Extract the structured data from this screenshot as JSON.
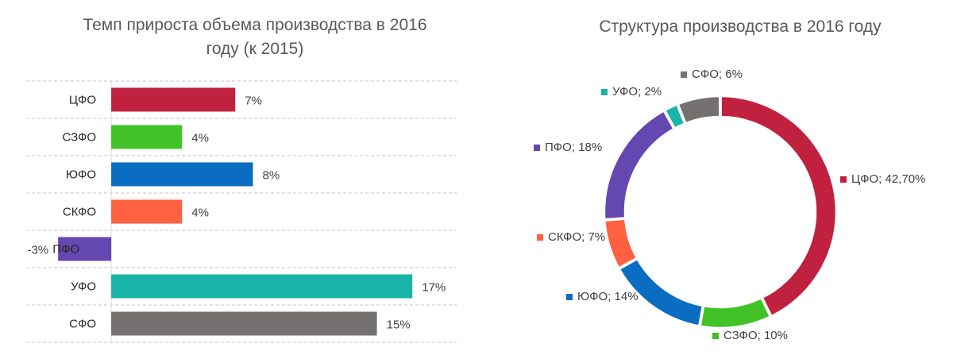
{
  "charts": {
    "bar": {
      "title_line1": "Темп прироста объема производства в 2016",
      "title_line2": "году (к 2015)"
    },
    "donut": {
      "title": "Структура производства в 2016 году"
    }
  },
  "chart_data": [
    {
      "type": "bar",
      "orientation": "horizontal",
      "title": "Темп прироста объема производства в 2016 году (к 2015)",
      "categories": [
        "ЦФО",
        "СЗФО",
        "ЮФО",
        "СКФО",
        "ПФО",
        "УФО",
        "СФО"
      ],
      "values": [
        7,
        4,
        8,
        4,
        -3,
        17,
        15
      ],
      "value_labels": [
        "7%",
        "4%",
        "8%",
        "4%",
        "-3%",
        "17%",
        "15%"
      ],
      "colors": [
        "#C0213F",
        "#41C227",
        "#0A6DC1",
        "#FF6040",
        "#6447B0",
        "#1AB3A8",
        "#757171"
      ],
      "xlim": [
        -4.8,
        19.5
      ],
      "grid": "dashed"
    },
    {
      "type": "pie",
      "donut": true,
      "title": "Структура производства в 2016 году",
      "slices": [
        {
          "label": "ЦФО; 42,70%",
          "value": 42.7,
          "color": "#C0213F"
        },
        {
          "label": "СЗФО; 10%",
          "value": 10,
          "color": "#41C227"
        },
        {
          "label": "ЮФО; 14%",
          "value": 14,
          "color": "#0A6DC1"
        },
        {
          "label": "СКФО; 7%",
          "value": 7,
          "color": "#FF6040"
        },
        {
          "label": "ПФО; 18%",
          "value": 18,
          "color": "#6447B0"
        },
        {
          "label": "УФО; 2%",
          "value": 2,
          "color": "#1AB3A8"
        },
        {
          "label": "СФО; 6%",
          "value": 6,
          "color": "#757171"
        }
      ]
    }
  ]
}
